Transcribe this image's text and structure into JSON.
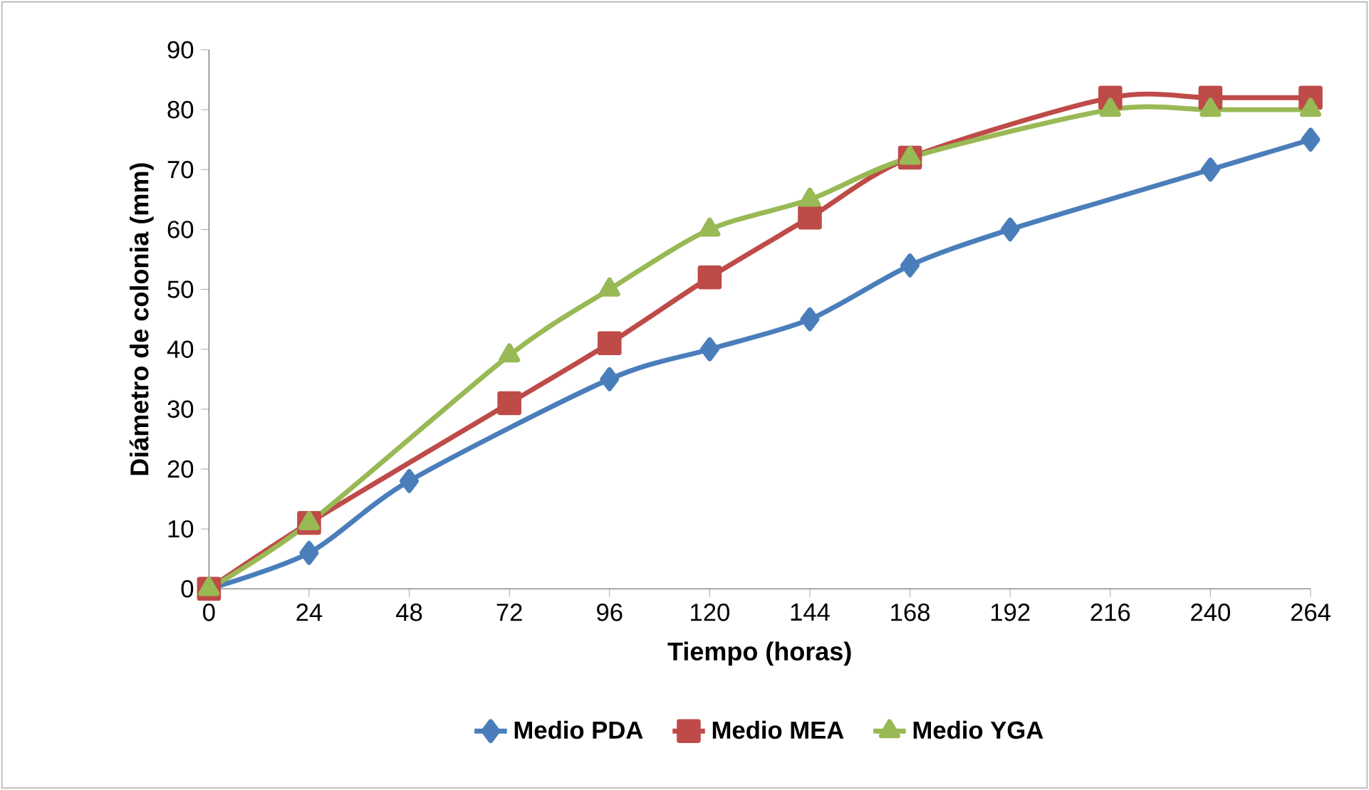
{
  "chart_data": {
    "type": "line",
    "xlabel": "Tiempo (horas)",
    "ylabel": "Diámetro de colonia (mm)",
    "xlim": [
      0,
      264
    ],
    "xticks": [
      0,
      24,
      48,
      72,
      96,
      120,
      144,
      168,
      192,
      216,
      240,
      264
    ],
    "ylim": [
      0,
      90
    ],
    "yticks": [
      0,
      10,
      20,
      30,
      40,
      50,
      60,
      70,
      80,
      90
    ],
    "grid": false,
    "legend": "bottom",
    "series": [
      {
        "name": "Medio PDA",
        "color": "#4a7ebb",
        "marker": "diamond",
        "x": [
          0,
          24,
          48,
          96,
          120,
          144,
          168,
          192,
          240,
          264
        ],
        "values": [
          0,
          6,
          18,
          35,
          40,
          45,
          54,
          60,
          70,
          75
        ]
      },
      {
        "name": "Medio MEA",
        "color": "#be4b48",
        "marker": "square",
        "x": [
          0,
          24,
          72,
          96,
          120,
          144,
          168,
          216,
          240,
          264
        ],
        "values": [
          0,
          11,
          31,
          41,
          52,
          62,
          72,
          82,
          82,
          82
        ]
      },
      {
        "name": "Medio YGA",
        "color": "#98b954",
        "marker": "triangle",
        "x": [
          0,
          24,
          72,
          96,
          120,
          144,
          168,
          216,
          240,
          264
        ],
        "values": [
          0,
          11,
          39,
          50,
          60,
          65,
          72,
          80,
          80,
          80
        ]
      }
    ]
  }
}
